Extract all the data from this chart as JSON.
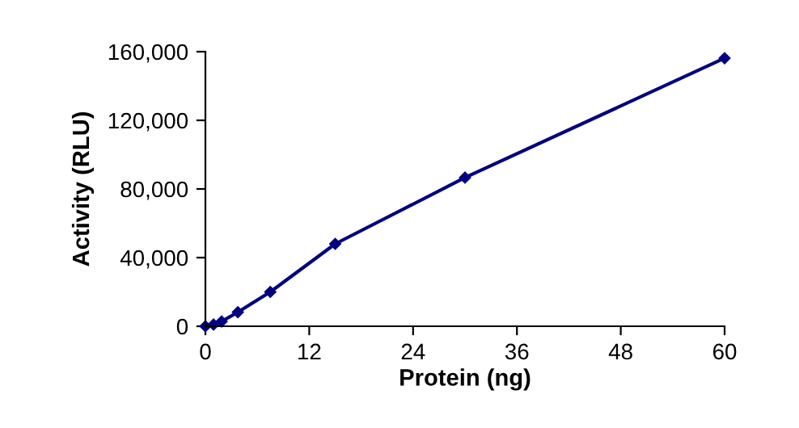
{
  "chart_data": {
    "type": "line",
    "xlabel": "Protein (ng)",
    "ylabel": "Activity (RLU)",
    "x": [
      0,
      0.94,
      1.875,
      3.75,
      7.5,
      15,
      30,
      60
    ],
    "series": [
      {
        "color": "#000080",
        "values": [
          0,
          1000,
          2800,
          8200,
          20000,
          48000,
          86600,
          156200
        ]
      }
    ],
    "xlim": [
      0,
      60
    ],
    "xticks": [
      0,
      12,
      24,
      36,
      48,
      60
    ],
    "ylim": [
      0,
      160000
    ],
    "yticks": [
      {
        "value": 0,
        "label": "0"
      },
      {
        "value": 40000,
        "label": "40,000"
      },
      {
        "value": 80000,
        "label": "80,000"
      },
      {
        "value": 120000,
        "label": "120,000"
      },
      {
        "value": 160000,
        "label": "160,000"
      }
    ],
    "grid": false,
    "marker": "diamond",
    "line_style": "solid"
  }
}
